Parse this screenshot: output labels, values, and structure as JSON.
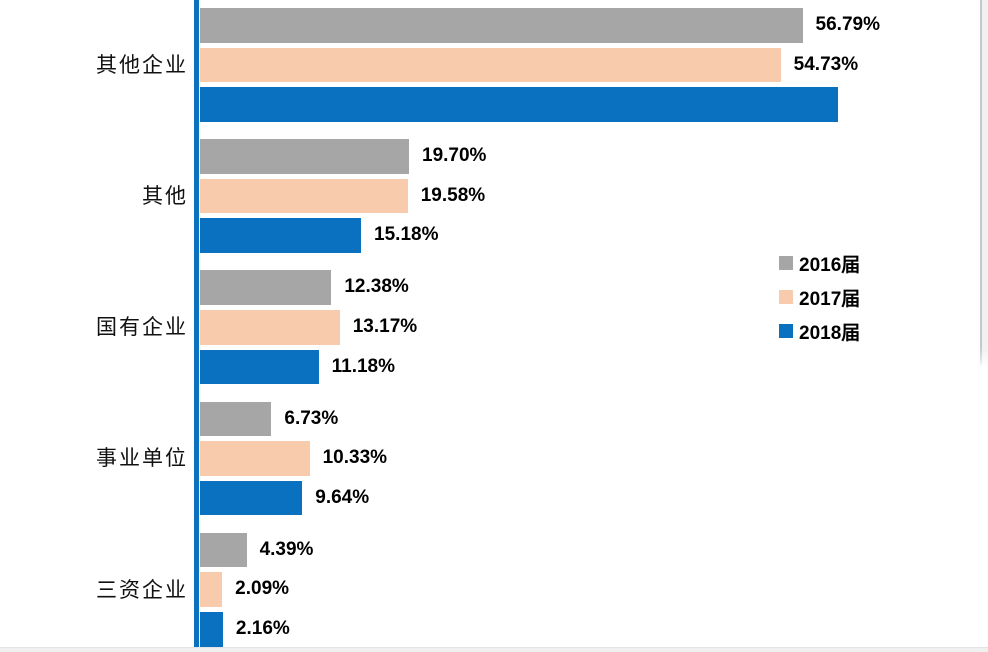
{
  "chart_data": {
    "type": "bar",
    "orientation": "horizontal",
    "title": "",
    "categories": [
      "其他企业",
      "其他",
      "国有企业",
      "事业单位",
      "三资企业"
    ],
    "series": [
      {
        "name": "2016届",
        "color": "#a6a6a6",
        "values": [
          56.79,
          19.7,
          12.38,
          6.73,
          4.39
        ],
        "labels": [
          "56.79%",
          "19.70%",
          "12.38%",
          "6.73%",
          "4.39%"
        ]
      },
      {
        "name": "2017届",
        "color": "#f8cbad",
        "values": [
          54.73,
          19.58,
          13.17,
          10.33,
          2.09
        ],
        "labels": [
          "54.73%",
          "19.58%",
          "13.17%",
          "10.33%",
          "2.09%"
        ]
      },
      {
        "name": "2018届",
        "color": "#0a70c0",
        "values": [
          60.1,
          15.18,
          11.18,
          9.64,
          2.16
        ],
        "labels": [
          "",
          "15.18%",
          "11.18%",
          "9.64%",
          "2.16%"
        ]
      }
    ],
    "value_axis": {
      "min": 0,
      "unit": "%",
      "ticks_visible": false
    },
    "axis_line_color": "#0a70c0",
    "legend_position": "middle-right",
    "grid": false
  }
}
